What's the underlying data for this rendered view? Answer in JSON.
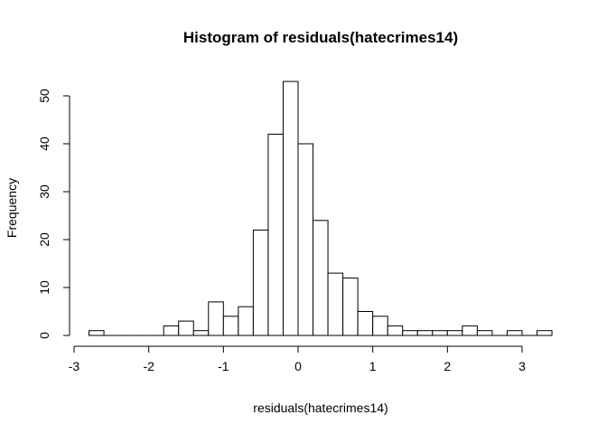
{
  "chart_data": {
    "type": "bar",
    "title": "Histogram of residuals(hatecrimes14)",
    "xlabel": "residuals(hatecrimes14)",
    "ylabel": "Frequency",
    "bin_width": 0.2,
    "bins": [
      {
        "start": -2.8,
        "end": -2.6,
        "count": 1
      },
      {
        "start": -2.6,
        "end": -2.4,
        "count": 0
      },
      {
        "start": -2.4,
        "end": -2.2,
        "count": 0
      },
      {
        "start": -2.2,
        "end": -2.0,
        "count": 0
      },
      {
        "start": -2.0,
        "end": -1.8,
        "count": 0
      },
      {
        "start": -1.8,
        "end": -1.6,
        "count": 2
      },
      {
        "start": -1.6,
        "end": -1.4,
        "count": 3
      },
      {
        "start": -1.4,
        "end": -1.2,
        "count": 1
      },
      {
        "start": -1.2,
        "end": -1.0,
        "count": 7
      },
      {
        "start": -1.0,
        "end": -0.8,
        "count": 4
      },
      {
        "start": -0.8,
        "end": -0.6,
        "count": 6
      },
      {
        "start": -0.6,
        "end": -0.4,
        "count": 22
      },
      {
        "start": -0.4,
        "end": -0.2,
        "count": 42
      },
      {
        "start": -0.2,
        "end": 0.0,
        "count": 53
      },
      {
        "start": 0.0,
        "end": 0.2,
        "count": 40
      },
      {
        "start": 0.2,
        "end": 0.4,
        "count": 24
      },
      {
        "start": 0.4,
        "end": 0.6,
        "count": 13
      },
      {
        "start": 0.6,
        "end": 0.8,
        "count": 12
      },
      {
        "start": 0.8,
        "end": 1.0,
        "count": 5
      },
      {
        "start": 1.0,
        "end": 1.2,
        "count": 4
      },
      {
        "start": 1.2,
        "end": 1.4,
        "count": 2
      },
      {
        "start": 1.4,
        "end": 1.6,
        "count": 1
      },
      {
        "start": 1.6,
        "end": 1.8,
        "count": 1
      },
      {
        "start": 1.8,
        "end": 2.0,
        "count": 1
      },
      {
        "start": 2.0,
        "end": 2.2,
        "count": 1
      },
      {
        "start": 2.2,
        "end": 2.4,
        "count": 2
      },
      {
        "start": 2.4,
        "end": 2.6,
        "count": 1
      },
      {
        "start": 2.6,
        "end": 2.8,
        "count": 0
      },
      {
        "start": 2.8,
        "end": 3.0,
        "count": 1
      },
      {
        "start": 3.0,
        "end": 3.2,
        "count": 0
      },
      {
        "start": 3.2,
        "end": 3.4,
        "count": 1
      }
    ],
    "xlim": [
      -3,
      3.4
    ],
    "ylim": [
      0,
      53
    ],
    "x_ticks": [
      -3,
      -2,
      -1,
      0,
      1,
      2,
      3
    ],
    "x_tick_labels": [
      "-3",
      "-2",
      "-1",
      "0",
      "1",
      "2",
      "3"
    ],
    "y_ticks": [
      0,
      10,
      20,
      30,
      40,
      50
    ],
    "y_tick_labels": [
      "0",
      "10",
      "20",
      "30",
      "40",
      "50"
    ],
    "grid": false,
    "legend": "none",
    "colors": {
      "bar_fill": "#ffffff",
      "bar_stroke": "#000000",
      "text": "#000000",
      "background": "#ffffff"
    }
  }
}
